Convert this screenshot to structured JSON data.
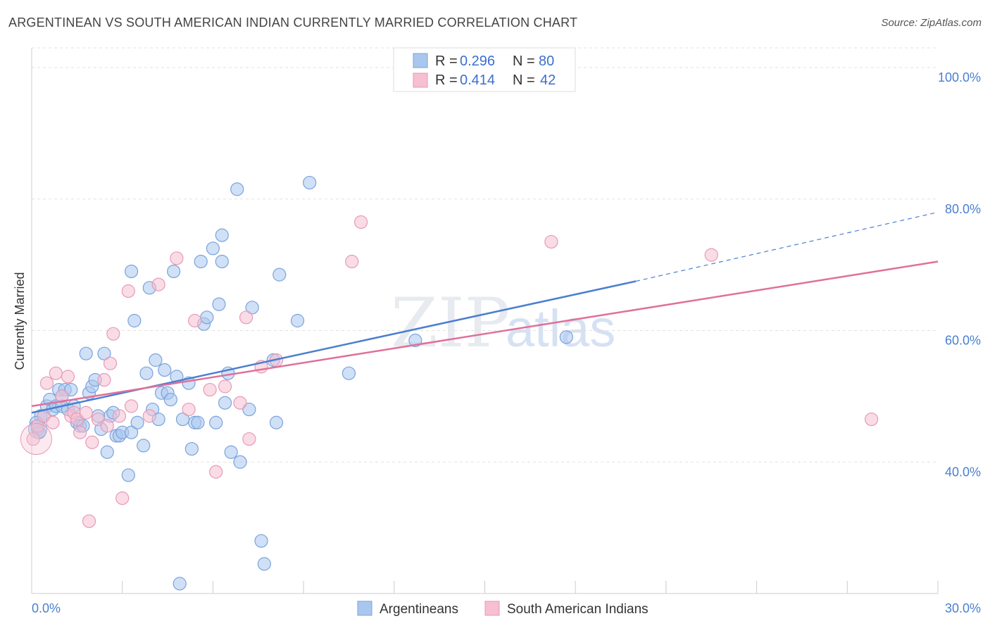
{
  "header": {
    "title": "ARGENTINEAN VS SOUTH AMERICAN INDIAN CURRENTLY MARRIED CORRELATION CHART",
    "source": "Source: ZipAtlas.com"
  },
  "watermark": {
    "zip": "ZIP",
    "atlas": "atlas"
  },
  "legend": {
    "rows": [
      {
        "r_label": "R = ",
        "r_value": "0.296",
        "n_label": "N = ",
        "n_value": "80"
      },
      {
        "r_label": "R = ",
        "r_value": "0.414",
        "n_label": "N = ",
        "n_value": "42"
      }
    ]
  },
  "chart_data": {
    "type": "scatter",
    "xlabel": "",
    "ylabel": "Currently Married",
    "xlim": [
      0,
      30
    ],
    "ylim": [
      20,
      103
    ],
    "x_tick_labels": [
      "0.0%",
      "30.0%"
    ],
    "y_tick_values": [
      40,
      60,
      80,
      100
    ],
    "y_tick_labels": [
      "40.0%",
      "60.0%",
      "80.0%",
      "100.0%"
    ],
    "grid": "horizontal-dashed",
    "colors": {
      "blue": "#4a7fd0",
      "pink": "#e0709a",
      "blue_fill": "#a9c7ee",
      "pink_fill": "#f6bfd2"
    },
    "series": [
      {
        "name": "Argentineans",
        "color": "#4a7fd0",
        "trend": {
          "x0": 0,
          "y0": 47.5,
          "x1": 20,
          "y1": 67.5,
          "dash_to_x": 30,
          "dash_to_y": 78
        },
        "points": [
          [
            0.2,
            45
          ],
          [
            0.3,
            47
          ],
          [
            0.4,
            47
          ],
          [
            0.5,
            48.5
          ],
          [
            0.6,
            49.5
          ],
          [
            0.7,
            48
          ],
          [
            0.8,
            48.5
          ],
          [
            0.9,
            51
          ],
          [
            1.0,
            48.5
          ],
          [
            1.1,
            51
          ],
          [
            1.2,
            48
          ],
          [
            1.3,
            51
          ],
          [
            1.4,
            48.5
          ],
          [
            1.5,
            46
          ],
          [
            1.6,
            45.5
          ],
          [
            1.7,
            45.5
          ],
          [
            1.8,
            56.5
          ],
          [
            1.9,
            50.5
          ],
          [
            2.0,
            51.5
          ],
          [
            2.1,
            52.5
          ],
          [
            2.3,
            45
          ],
          [
            2.4,
            56.5
          ],
          [
            2.5,
            41.5
          ],
          [
            2.6,
            47
          ],
          [
            2.7,
            47.5
          ],
          [
            2.8,
            44
          ],
          [
            2.9,
            44
          ],
          [
            3.0,
            44.5
          ],
          [
            3.2,
            38
          ],
          [
            3.3,
            44.5
          ],
          [
            3.3,
            69
          ],
          [
            3.4,
            61.5
          ],
          [
            3.5,
            46
          ],
          [
            3.7,
            42.5
          ],
          [
            3.8,
            53.5
          ],
          [
            3.9,
            66.5
          ],
          [
            4.0,
            48
          ],
          [
            4.1,
            55.5
          ],
          [
            4.3,
            50.5
          ],
          [
            4.4,
            54
          ],
          [
            4.5,
            50.5
          ],
          [
            4.6,
            49.5
          ],
          [
            4.7,
            69
          ],
          [
            4.8,
            53
          ],
          [
            4.9,
            21.5
          ],
          [
            5.0,
            46.5
          ],
          [
            5.2,
            52
          ],
          [
            5.3,
            42
          ],
          [
            5.4,
            46
          ],
          [
            5.5,
            46
          ],
          [
            5.6,
            70.5
          ],
          [
            5.7,
            61
          ],
          [
            5.8,
            62
          ],
          [
            6.0,
            72.5
          ],
          [
            6.1,
            46
          ],
          [
            6.2,
            64
          ],
          [
            6.3,
            70.5
          ],
          [
            6.3,
            74.5
          ],
          [
            6.4,
            49
          ],
          [
            6.5,
            53.5
          ],
          [
            6.6,
            41.5
          ],
          [
            6.8,
            81.5
          ],
          [
            6.9,
            40
          ],
          [
            7.2,
            48
          ],
          [
            7.3,
            63.5
          ],
          [
            7.6,
            28
          ],
          [
            7.7,
            24.5
          ],
          [
            8.0,
            55.5
          ],
          [
            8.1,
            46
          ],
          [
            8.2,
            68.5
          ],
          [
            8.8,
            61.5
          ],
          [
            9.2,
            82.5
          ],
          [
            10.5,
            53.5
          ],
          [
            12.7,
            58.5
          ],
          [
            17.7,
            59
          ],
          [
            0.15,
            46
          ],
          [
            0.25,
            44.5
          ],
          [
            1.0,
            50
          ],
          [
            2.2,
            47
          ],
          [
            4.2,
            46.5
          ]
        ]
      },
      {
        "name": "South American Indians",
        "color": "#e0709a",
        "trend": {
          "x0": 0,
          "y0": 48.5,
          "x1": 30,
          "y1": 70.5
        },
        "points": [
          [
            0.05,
            43.5
          ],
          [
            0.2,
            45.5
          ],
          [
            0.4,
            47
          ],
          [
            0.5,
            52
          ],
          [
            0.7,
            46
          ],
          [
            0.8,
            53.5
          ],
          [
            1.0,
            50
          ],
          [
            1.2,
            53
          ],
          [
            1.3,
            47
          ],
          [
            1.4,
            47.5
          ],
          [
            1.5,
            46.5
          ],
          [
            1.6,
            44.5
          ],
          [
            1.8,
            47.5
          ],
          [
            1.9,
            31
          ],
          [
            2.0,
            43
          ],
          [
            2.2,
            46.5
          ],
          [
            2.4,
            52.5
          ],
          [
            2.5,
            45.5
          ],
          [
            2.6,
            55
          ],
          [
            2.7,
            59.5
          ],
          [
            2.9,
            47
          ],
          [
            3.0,
            34.5
          ],
          [
            3.2,
            66
          ],
          [
            3.3,
            48.5
          ],
          [
            3.9,
            47
          ],
          [
            4.2,
            67
          ],
          [
            4.8,
            71
          ],
          [
            5.2,
            48
          ],
          [
            5.4,
            61.5
          ],
          [
            5.9,
            51
          ],
          [
            6.1,
            38.5
          ],
          [
            6.4,
            51.5
          ],
          [
            6.9,
            49
          ],
          [
            7.1,
            62
          ],
          [
            7.2,
            43.5
          ],
          [
            7.6,
            54.5
          ],
          [
            8.1,
            55.5
          ],
          [
            10.6,
            70.5
          ],
          [
            10.9,
            76.5
          ],
          [
            17.2,
            73.5
          ],
          [
            22.5,
            71.5
          ],
          [
            27.8,
            46.5
          ]
        ]
      }
    ]
  }
}
